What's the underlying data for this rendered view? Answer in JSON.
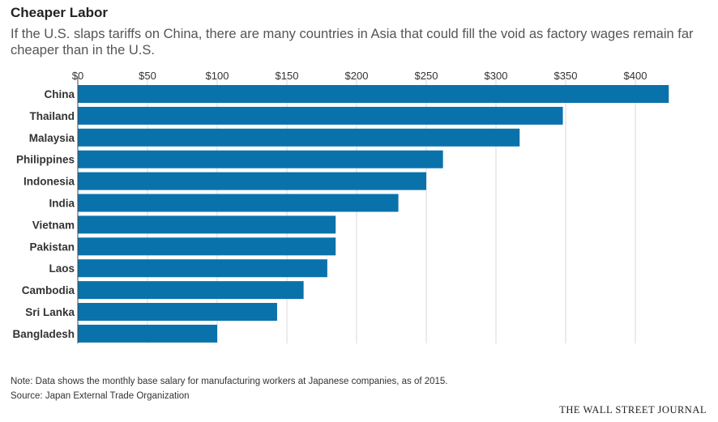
{
  "header": {
    "title": "Cheaper Labor",
    "subtitle": "If the U.S. slaps tariffs on China, there are many countries in Asia that could fill the void as factory wages remain far cheaper than in the U.S."
  },
  "chart_data": {
    "type": "bar",
    "orientation": "horizontal",
    "categories": [
      "China",
      "Thailand",
      "Malaysia",
      "Philippines",
      "Indonesia",
      "India",
      "Vietnam",
      "Pakistan",
      "Laos",
      "Cambodia",
      "Sri Lanka",
      "Bangladesh"
    ],
    "values": [
      424,
      348,
      317,
      262,
      250,
      230,
      185,
      185,
      179,
      162,
      143,
      100
    ],
    "xlim": [
      0,
      425
    ],
    "x_ticks": [
      0,
      50,
      100,
      150,
      200,
      250,
      300,
      350,
      400
    ],
    "x_tick_labels": [
      "$0",
      "$50",
      "$100",
      "$150",
      "$200",
      "$250",
      "$300",
      "$350",
      "$400"
    ],
    "x_axis_position": "top",
    "grid": true,
    "bar_color": "#0a72ab"
  },
  "footer": {
    "note": "Note: Data shows the monthly base salary for manufacturing workers at Japanese companies, as of 2015.",
    "source": "Source: Japan External Trade Organization",
    "brand": "THE WALL STREET JOURNAL"
  }
}
